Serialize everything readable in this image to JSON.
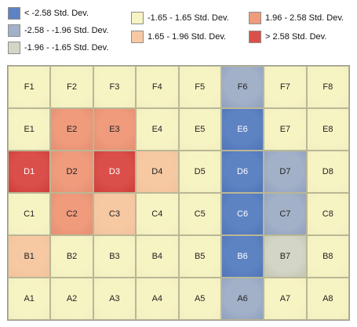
{
  "legend": {
    "items": [
      {
        "label": "< -2.58 Std. Dev.",
        "color": "#5e83c3"
      },
      {
        "label": "-2.58 - -1.96 Std. Dev.",
        "color": "#a3b1c8"
      },
      {
        "label": "-1.96 - -1.65 Std. Dev.",
        "color": "#d3d6c6"
      },
      {
        "label": "-1.65 - 1.65 Std. Dev.",
        "color": "#f7f4c4"
      },
      {
        "label": "1.65 - 1.96 Std. Dev.",
        "color": "#f6c9a3"
      },
      {
        "label": "1.96 - 2.58 Std. Dev.",
        "color": "#ef9b7c"
      },
      {
        "label": "> 2.58 Std. Dev.",
        "color": "#da4f4a"
      }
    ]
  },
  "grid": {
    "columns": [
      "1",
      "2",
      "3",
      "4",
      "5",
      "6",
      "7",
      "8"
    ],
    "rows": [
      {
        "letter": "F",
        "classes": [
          3,
          3,
          3,
          3,
          3,
          1,
          3,
          3
        ]
      },
      {
        "letter": "E",
        "classes": [
          3,
          5,
          5,
          3,
          3,
          0,
          3,
          3
        ]
      },
      {
        "letter": "D",
        "classes": [
          6,
          5,
          6,
          4,
          3,
          0,
          1,
          3
        ]
      },
      {
        "letter": "C",
        "classes": [
          3,
          5,
          4,
          3,
          3,
          0,
          1,
          3
        ]
      },
      {
        "letter": "B",
        "classes": [
          4,
          3,
          3,
          3,
          3,
          0,
          2,
          3
        ]
      },
      {
        "letter": "A",
        "classes": [
          3,
          3,
          3,
          3,
          3,
          1,
          3,
          3
        ]
      }
    ]
  }
}
